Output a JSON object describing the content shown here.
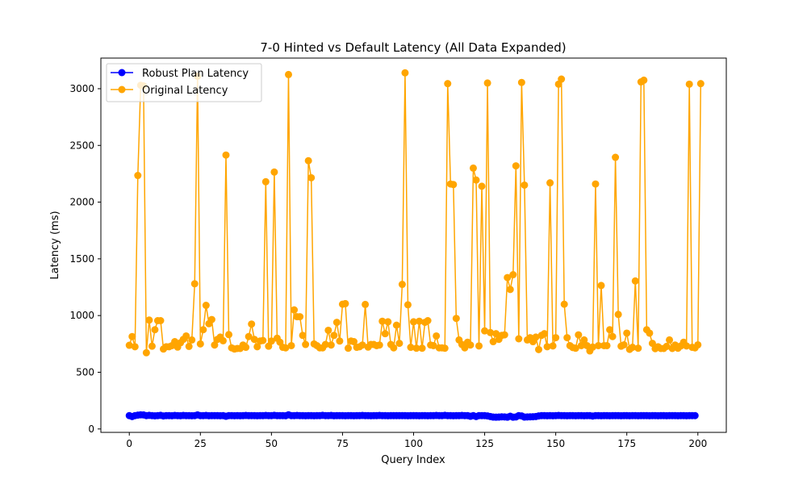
{
  "chart_data": {
    "type": "line",
    "title": "7-0 Hinted vs Default Latency (All Data Expanded)",
    "xlabel": "Query Index",
    "ylabel": "Latency (ms)",
    "xlim": [
      -10,
      210
    ],
    "ylim": [
      -30,
      3270
    ],
    "xticks": [
      0,
      25,
      50,
      75,
      100,
      125,
      150,
      175,
      200
    ],
    "yticks": [
      0,
      500,
      1000,
      1500,
      2000,
      2500,
      3000
    ],
    "grid": false,
    "legend_position": "top-left",
    "series": [
      {
        "name": "Robust Plan Latency",
        "color": "#0000ff",
        "values": [
          118,
          110,
          118,
          122,
          125,
          124,
          118,
          120,
          118,
          116,
          118,
          120,
          115,
          118,
          118,
          117,
          119,
          118,
          117,
          119,
          118,
          118,
          117,
          118,
          124,
          118,
          118,
          119,
          117,
          118,
          118,
          118,
          117,
          118,
          112,
          118,
          118,
          117,
          118,
          117,
          118,
          119,
          118,
          118,
          118,
          117,
          118,
          118,
          119,
          118,
          118,
          120,
          118,
          118,
          118,
          117,
          125,
          118,
          118,
          119,
          118,
          118,
          117,
          118,
          118,
          117,
          118,
          118,
          120,
          118,
          118,
          119,
          117,
          118,
          118,
          118,
          117,
          118,
          118,
          117,
          118,
          118,
          119,
          118,
          118,
          117,
          118,
          118,
          119,
          118,
          118,
          117,
          118,
          118,
          118,
          118,
          118,
          118,
          117,
          118,
          118,
          118,
          117,
          118,
          118,
          117,
          118,
          118,
          119,
          118,
          118,
          120,
          118,
          118,
          117,
          118,
          118,
          119,
          118,
          118,
          112,
          118,
          110,
          118,
          118,
          118,
          115,
          110,
          105,
          104,
          105,
          107,
          106,
          104,
          112,
          104,
          106,
          118,
          115,
          105,
          106,
          107,
          108,
          110,
          115,
          118,
          118,
          117,
          118,
          117,
          118,
          119,
          118,
          118,
          117,
          118,
          118,
          117,
          118,
          118,
          117,
          118,
          118,
          114,
          118,
          118,
          117,
          118,
          118,
          117,
          118,
          118,
          118,
          117,
          118,
          118,
          117,
          118,
          118,
          117,
          118,
          118,
          118,
          117,
          118,
          118,
          117,
          118,
          118,
          117,
          118,
          118,
          118,
          117,
          118,
          118,
          117,
          118,
          118,
          118
        ]
      },
      {
        "name": "Original Latency",
        "color": "#ffa500",
        "values": [
          738,
          815,
          725,
          2235,
          3030,
          3025,
          672,
          960,
          730,
          875,
          955,
          955,
          705,
          725,
          725,
          735,
          770,
          722,
          760,
          790,
          820,
          728,
          785,
          1280,
          3110,
          750,
          875,
          1090,
          928,
          965,
          740,
          790,
          810,
          778,
          2415,
          832,
          715,
          705,
          710,
          710,
          740,
          720,
          815,
          925,
          790,
          725,
          775,
          780,
          2180,
          730,
          775,
          2265,
          800,
          765,
          720,
          715,
          3125,
          735,
          1050,
          990,
          990,
          825,
          745,
          2365,
          2215,
          750,
          735,
          715,
          715,
          745,
          870,
          740,
          825,
          940,
          775,
          1100,
          1105,
          712,
          775,
          770,
          720,
          725,
          740,
          1098,
          722,
          745,
          745,
          735,
          740,
          950,
          840,
          945,
          745,
          715,
          915,
          755,
          1275,
          3140,
          1095,
          720,
          945,
          712,
          950,
          712,
          940,
          955,
          740,
          735,
          820,
          715,
          715,
          712,
          3045,
          2160,
          2155,
          975,
          785,
          745,
          715,
          765,
          740,
          2300,
          2195,
          732,
          2140,
          865,
          3050,
          850,
          770,
          840,
          790,
          825,
          830,
          1335,
          1230,
          1360,
          2320,
          795,
          3055,
          2150,
          785,
          805,
          770,
          810,
          700,
          825,
          840,
          725,
          2170,
          732,
          805,
          3040,
          3085,
          1100,
          805,
          735,
          718,
          712,
          830,
          735,
          785,
          735,
          688,
          722,
          2160,
          735,
          1265,
          735,
          735,
          875,
          815,
          2395,
          1010,
          730,
          742,
          845,
          702,
          720,
          1305,
          712,
          3060,
          3075,
          875,
          845,
          755,
          708,
          725,
          710,
          710,
          728,
          785,
          710,
          740,
          712,
          732,
          765,
          732,
          3040,
          720,
          715,
          742,
          3045
        ]
      }
    ]
  }
}
